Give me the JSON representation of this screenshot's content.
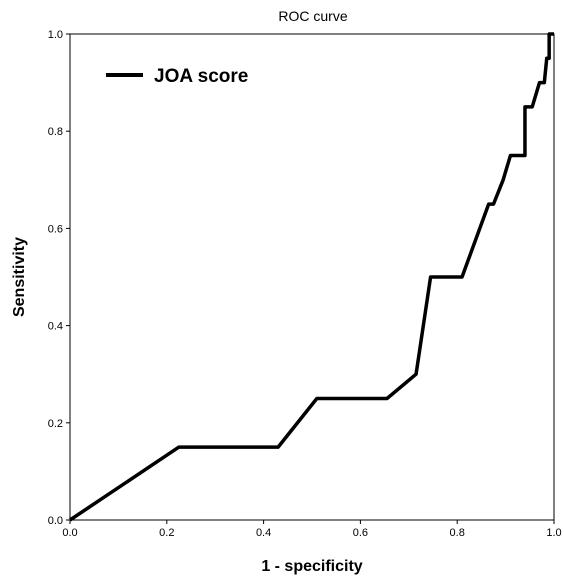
{
  "chart_data": {
    "type": "line",
    "title": "ROC curve",
    "xlabel": "1 - specificity",
    "ylabel": "Sensitivity",
    "xlim": [
      0,
      1
    ],
    "ylim": [
      0,
      1
    ],
    "x_ticks": [
      0.0,
      0.2,
      0.4,
      0.6,
      0.8,
      1.0
    ],
    "y_ticks": [
      0.0,
      0.2,
      0.4,
      0.6,
      0.8,
      1.0
    ],
    "x_tick_labels": [
      "0.0",
      "0.2",
      "0.4",
      "0.6",
      "0.8",
      "1.0"
    ],
    "y_tick_labels": [
      "0.0",
      "0.2",
      "0.4",
      "0.6",
      "0.8",
      "1.0"
    ],
    "grid": false,
    "legend": "top-left",
    "series": [
      {
        "name": "JOA score",
        "color": "#000000",
        "step": false,
        "points": [
          [
            0.0,
            0.0
          ],
          [
            0.225,
            0.15
          ],
          [
            0.43,
            0.15
          ],
          [
            0.51,
            0.25
          ],
          [
            0.655,
            0.25
          ],
          [
            0.715,
            0.3
          ],
          [
            0.745,
            0.5
          ],
          [
            0.81,
            0.5
          ],
          [
            0.865,
            0.65
          ],
          [
            0.875,
            0.65
          ],
          [
            0.895,
            0.7
          ],
          [
            0.91,
            0.75
          ],
          [
            0.94,
            0.75
          ],
          [
            0.94,
            0.85
          ],
          [
            0.955,
            0.85
          ],
          [
            0.97,
            0.9
          ],
          [
            0.98,
            0.9
          ],
          [
            0.985,
            0.95
          ],
          [
            0.99,
            0.95
          ],
          [
            0.99,
            1.0
          ],
          [
            1.0,
            1.0
          ]
        ]
      }
    ]
  }
}
